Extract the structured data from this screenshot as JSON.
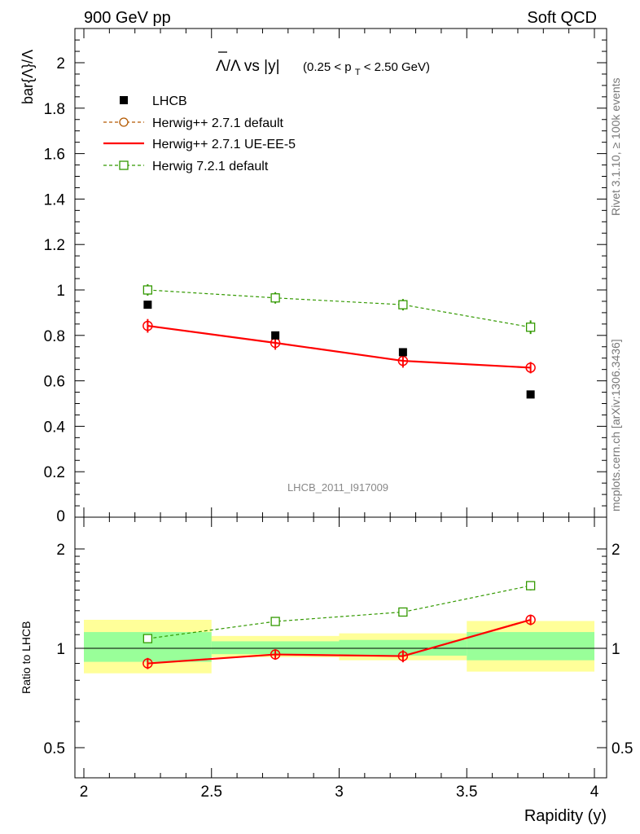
{
  "header": {
    "left": "900 GeV pp",
    "right": "Soft QCD"
  },
  "side": {
    "rivet": "Rivet 3.1.10, ≥ 100k events",
    "mcplots": "mcplots.cern.ch [arXiv:1306.3436]"
  },
  "colors": {
    "lhcb": "#000000",
    "herwig_default": "#b35900",
    "herwig_ueee5": "#ff0000",
    "herwig7": "#339900",
    "band_inner": "#99ff99",
    "band_outer": "#ffff99"
  },
  "chart_data": {
    "type": "scatter",
    "title_parts": {
      "main": "Λ/Λ vs |y|",
      "cut_open": "(0.25 < p",
      "cut_sub": "T",
      "cut_close": " < 2.50 GeV)"
    },
    "ylabel": "bar{Λ}/Λ",
    "xlabel": "Rapidity (y)",
    "watermark": "LHCB_2011_I917009",
    "xlim": [
      2,
      4
    ],
    "ylim": [
      0,
      2.15
    ],
    "x_ticks": [
      "2",
      "2.5",
      "3",
      "3.5",
      "4"
    ],
    "y_ticks": [
      "0",
      "0.2",
      "0.4",
      "0.6",
      "0.8",
      "1",
      "1.2",
      "1.4",
      "1.6",
      "1.8",
      "2"
    ],
    "x": [
      2.25,
      2.75,
      3.25,
      3.75
    ],
    "series": [
      {
        "key": "lhcb",
        "name": "LHCB",
        "marker": "square-filled",
        "values": [
          0.935,
          0.8,
          0.726,
          0.54
        ]
      },
      {
        "key": "herwig_default",
        "name": "Herwig++ 2.7.1 default",
        "marker": "circle-open",
        "line": "dashed",
        "values": [
          0.842,
          0.767,
          0.688,
          0.658
        ],
        "errors": [
          0.03,
          0.03,
          0.03,
          0.025
        ]
      },
      {
        "key": "herwig_ueee5",
        "name": "Herwig++ 2.7.1 UE-EE-5",
        "marker": "circle-open",
        "line": "solid",
        "values": [
          0.842,
          0.767,
          0.688,
          0.658
        ],
        "errors": [
          0.03,
          0.03,
          0.03,
          0.025
        ]
      },
      {
        "key": "herwig7",
        "name": "Herwig 7.2.1 default",
        "marker": "square-open",
        "line": "dashed",
        "values": [
          1.0,
          0.965,
          0.935,
          0.836
        ],
        "errors": [
          0.025,
          0.025,
          0.025,
          0.03
        ]
      }
    ],
    "ratio": {
      "ylabel": "Ratio to LHCB",
      "y_ticks": [
        "0.5",
        "1",
        "2"
      ],
      "ylim_log": [
        0.4,
        2.3
      ],
      "bins": [
        {
          "lo": 2.0,
          "hi": 2.5,
          "inner": [
            0.91,
            1.12
          ],
          "outer": [
            0.84,
            1.22
          ]
        },
        {
          "lo": 2.5,
          "hi": 3.0,
          "inner": [
            0.96,
            1.05
          ],
          "outer": [
            0.94,
            1.09
          ]
        },
        {
          "lo": 3.0,
          "hi": 3.5,
          "inner": [
            0.95,
            1.06
          ],
          "outer": [
            0.92,
            1.11
          ]
        },
        {
          "lo": 3.5,
          "hi": 4.0,
          "inner": [
            0.92,
            1.12
          ],
          "outer": [
            0.85,
            1.21
          ]
        }
      ],
      "series": [
        {
          "key": "herwig_ueee5",
          "values": [
            0.9,
            0.958,
            0.947,
            1.22
          ],
          "errors": [
            0.035,
            0.035,
            0.04,
            0.045
          ]
        },
        {
          "key": "herwig7",
          "values": [
            1.07,
            1.206,
            1.288,
            1.548
          ],
          "errors": [
            0.025,
            0.025,
            0.035,
            0.05
          ]
        }
      ]
    }
  }
}
